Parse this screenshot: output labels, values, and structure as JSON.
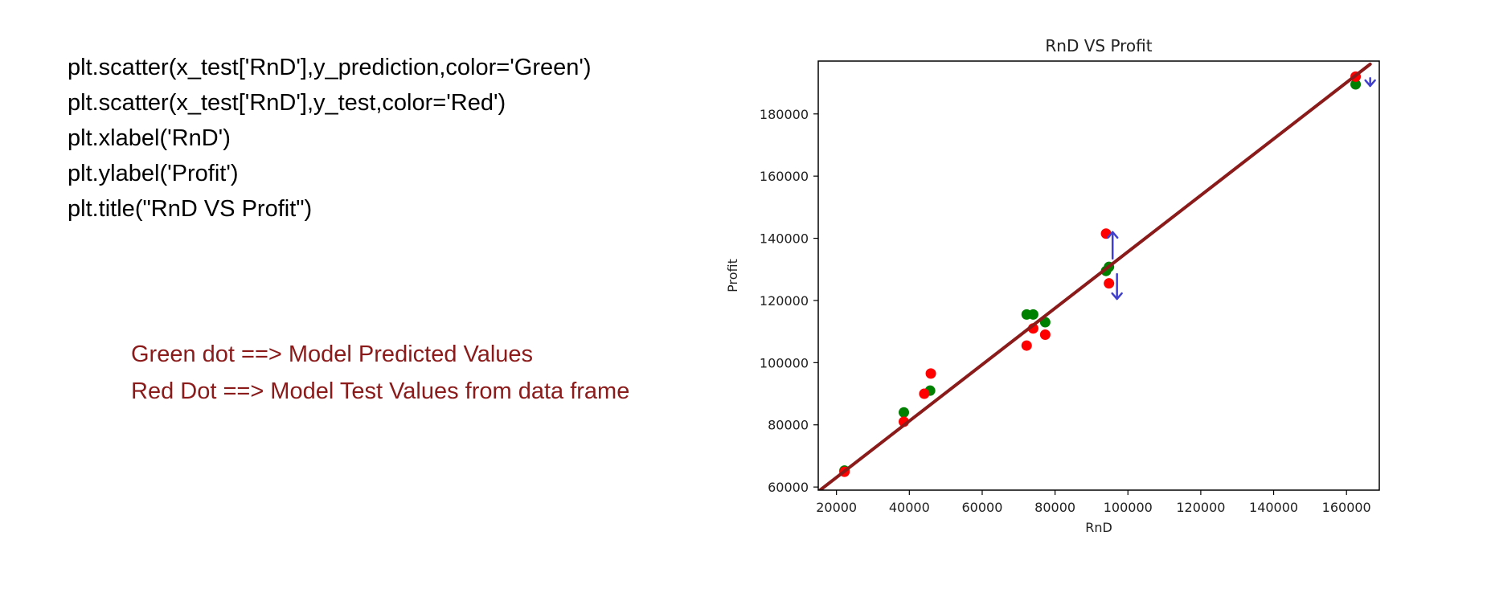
{
  "code": {
    "lines": [
      "plt.scatter(x_test['RnD'],y_prediction,color='Green')",
      "plt.scatter(x_test['RnD'],y_test,color='Red')",
      "plt.xlabel('RnD')",
      "plt.ylabel('Profit')",
      "plt.title(\"RnD VS Profit\")"
    ]
  },
  "legend_note": {
    "green_text": "Green dot ==> Model Predicted Values",
    "red_text": "Red Dot ==> Model Test Values from data frame",
    "color": "#8b1a1a"
  },
  "chart_data": {
    "type": "scatter",
    "title": "RnD VS Profit",
    "xlabel": "RnD",
    "ylabel": "Profit",
    "xlim": [
      15000,
      169000
    ],
    "ylim": [
      59000,
      197000
    ],
    "x_ticks": [
      20000,
      40000,
      60000,
      80000,
      100000,
      120000,
      140000,
      160000
    ],
    "x_tick_labels": [
      "20000",
      "40000",
      "60000",
      "80000",
      "100000",
      "120000",
      "140000",
      "160000"
    ],
    "y_ticks": [
      60000,
      80000,
      100000,
      120000,
      140000,
      160000,
      180000
    ],
    "y_tick_labels": [
      "60000",
      "80000",
      "100000",
      "120000",
      "140000",
      "160000",
      "180000"
    ],
    "grid": false,
    "series": [
      {
        "color": "#008000",
        "marker": "circle",
        "points": [
          {
            "x": 22200,
            "y": 65300
          },
          {
            "x": 38500,
            "y": 84000
          },
          {
            "x": 45700,
            "y": 91000
          },
          {
            "x": 72200,
            "y": 115500
          },
          {
            "x": 74000,
            "y": 115500
          },
          {
            "x": 77300,
            "y": 113000
          },
          {
            "x": 94000,
            "y": 129500
          },
          {
            "x": 94800,
            "y": 130800
          },
          {
            "x": 162500,
            "y": 189500
          }
        ]
      },
      {
        "color": "#ff0000",
        "marker": "circle",
        "points": [
          {
            "x": 22200,
            "y": 64900
          },
          {
            "x": 38500,
            "y": 81000
          },
          {
            "x": 44100,
            "y": 90000
          },
          {
            "x": 45900,
            "y": 96500
          },
          {
            "x": 72200,
            "y": 105500
          },
          {
            "x": 74000,
            "y": 111000
          },
          {
            "x": 77300,
            "y": 109000
          },
          {
            "x": 94000,
            "y": 141500
          },
          {
            "x": 94800,
            "y": 125500
          },
          {
            "x": 162500,
            "y": 192000
          }
        ]
      }
    ],
    "fit_line": {
      "color": "#8b1a1a",
      "points": [
        {
          "x": 15500,
          "y": 59000
        },
        {
          "x": 166500,
          "y": 196000
        }
      ]
    },
    "annotations": {
      "color": "#4040cc",
      "arrows": [
        {
          "x": 95800,
          "y_from": 133500,
          "y_to": 142000
        },
        {
          "x": 97000,
          "y_from": 128500,
          "y_to": 120500
        },
        {
          "x": 166500,
          "y_from": 191500,
          "y_to": 189000
        }
      ]
    }
  }
}
